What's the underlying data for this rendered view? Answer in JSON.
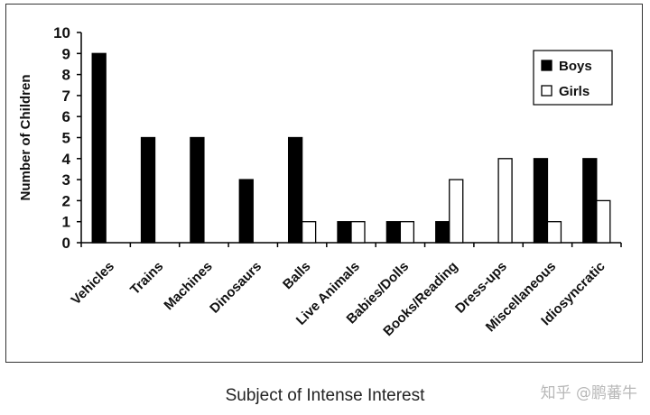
{
  "chart_data": {
    "type": "bar",
    "title": "",
    "xlabel": "Subject of Intense Interest",
    "ylabel": "Number of Children",
    "ylim": [
      0,
      10
    ],
    "yticks": [
      0,
      1,
      2,
      3,
      4,
      5,
      6,
      7,
      8,
      9,
      10
    ],
    "grid": false,
    "legend_position": "top-right",
    "categories": [
      "Vehicles",
      "Trains",
      "Machines",
      "Dinosaurs",
      "Balls",
      "Live Animals",
      "Babies/Dolls",
      "Books/Reading",
      "Dress-ups",
      "Miscellaneous",
      "Idiosyncratic"
    ],
    "series": [
      {
        "name": "Boys",
        "values": [
          9,
          5,
          5,
          3,
          5,
          1,
          1,
          1,
          0,
          4,
          4
        ],
        "fill": "#000000"
      },
      {
        "name": "Girls",
        "values": [
          0,
          0,
          0,
          0,
          1,
          1,
          1,
          3,
          4,
          1,
          2
        ],
        "fill": "#ffffff"
      }
    ]
  },
  "watermark": "知乎 @鹏蕃牛"
}
